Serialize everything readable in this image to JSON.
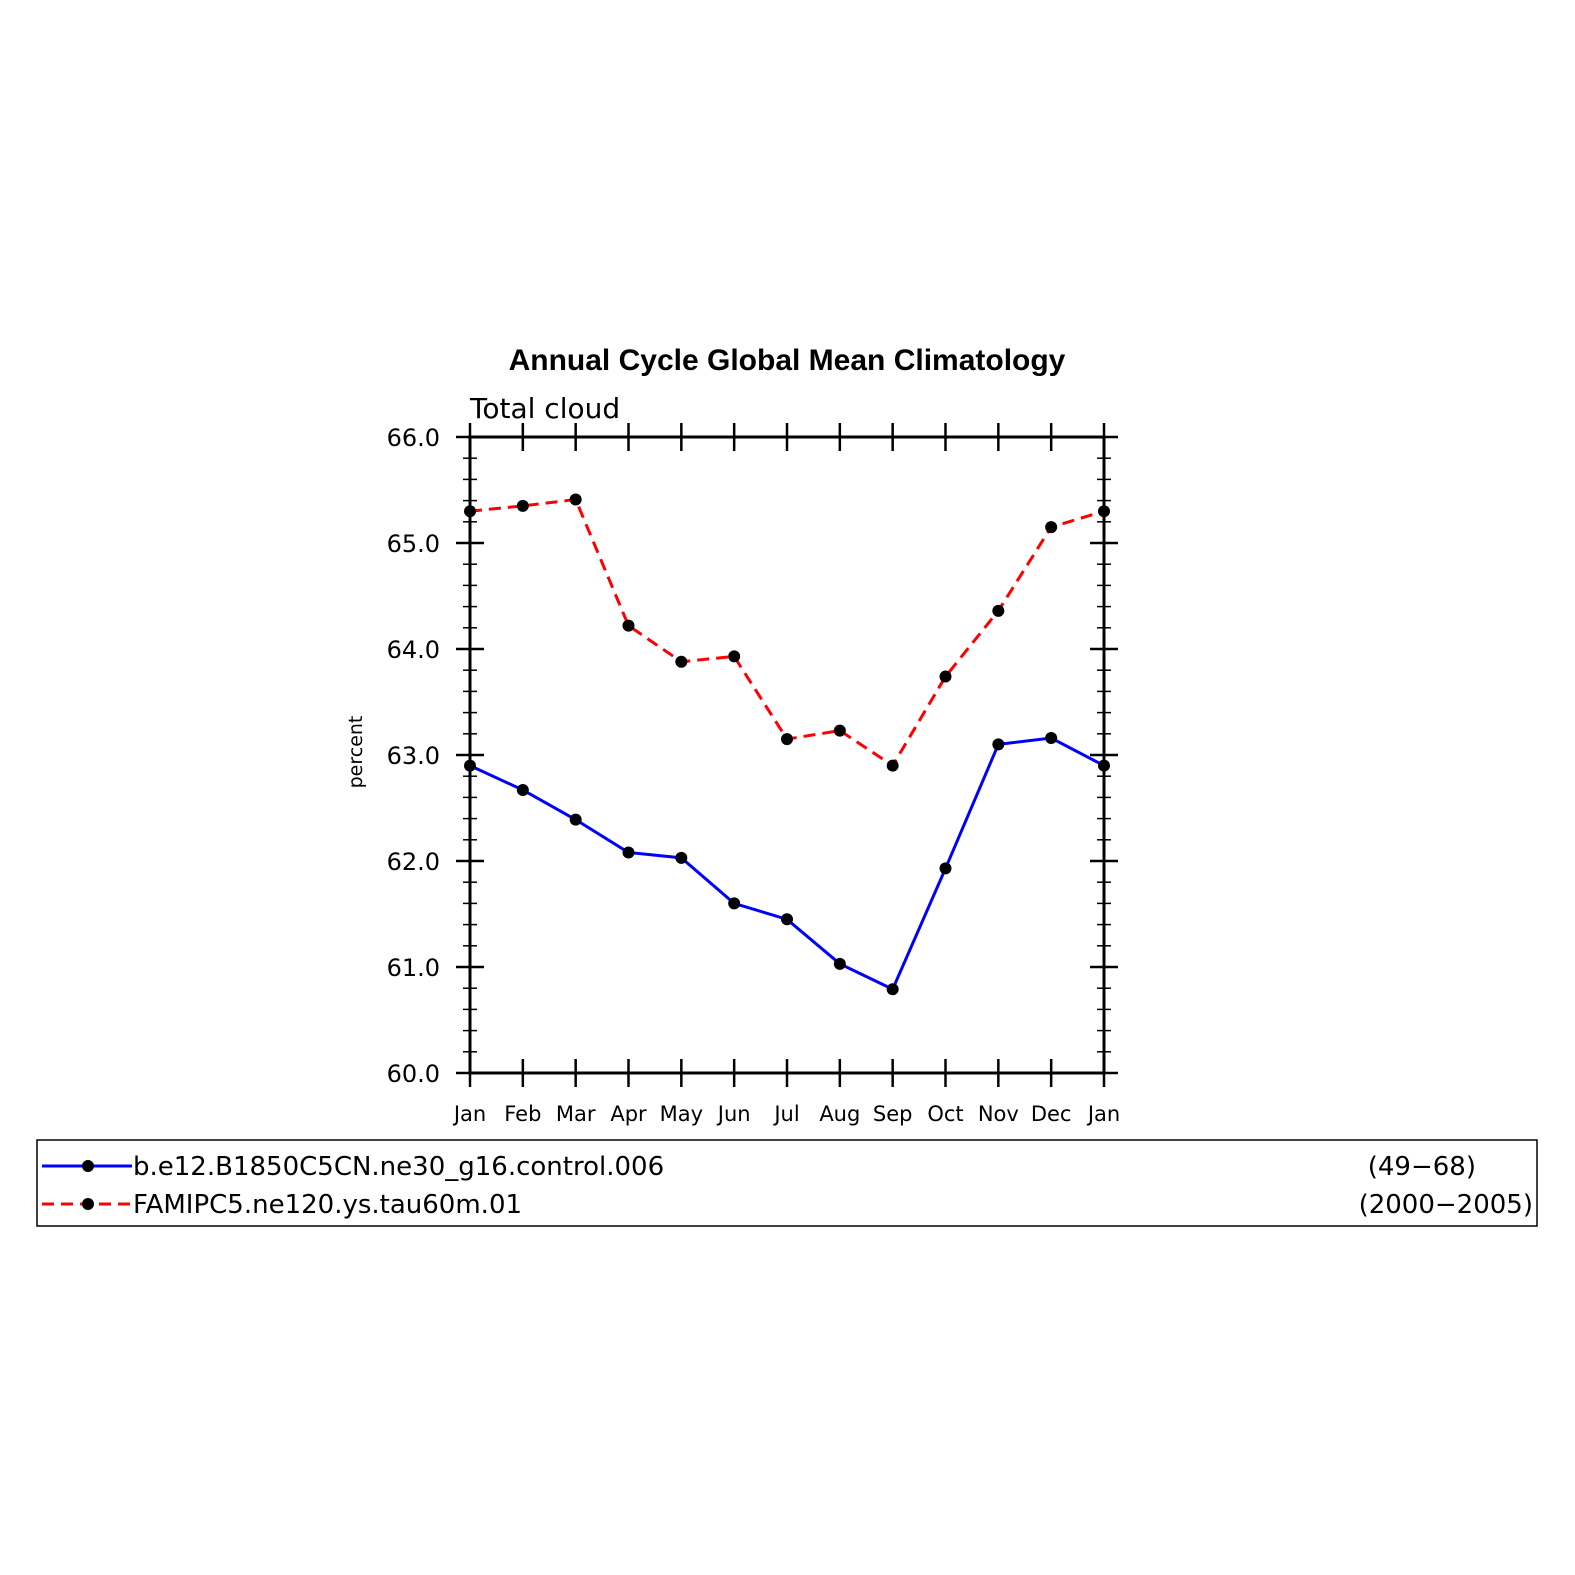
{
  "chart_data": {
    "type": "line",
    "title": "Annual Cycle Global Mean Climatology",
    "subtitle": "Total cloud",
    "xlabel": "",
    "ylabel": "percent",
    "categories": [
      "Jan",
      "Feb",
      "Mar",
      "Apr",
      "May",
      "Jun",
      "Jul",
      "Aug",
      "Sep",
      "Oct",
      "Nov",
      "Dec",
      "Jan"
    ],
    "ylim": [
      60.0,
      66.0
    ],
    "yticks": [
      "60.0",
      "61.0",
      "62.0",
      "63.0",
      "64.0",
      "65.0",
      "66.0"
    ],
    "grid": false,
    "legend_position": "bottom",
    "series": [
      {
        "name": "b.e12.B1850C5CN.ne30_g16.control.006",
        "years": "(49−68)",
        "color": "#0000ff",
        "dash": "solid",
        "values": [
          62.9,
          62.67,
          62.39,
          62.08,
          62.03,
          61.6,
          61.45,
          61.03,
          60.79,
          61.93,
          63.1,
          63.16,
          62.9
        ]
      },
      {
        "name": "FAMIPC5.ne120.ys.tau60m.01",
        "years": "(2000−2005)",
        "color": "#ff0000",
        "dash": "dashed",
        "values": [
          65.3,
          65.35,
          65.41,
          64.22,
          63.88,
          63.93,
          63.15,
          63.23,
          62.9,
          63.74,
          64.36,
          65.15,
          65.3
        ]
      }
    ],
    "marker_color": "#000000"
  }
}
